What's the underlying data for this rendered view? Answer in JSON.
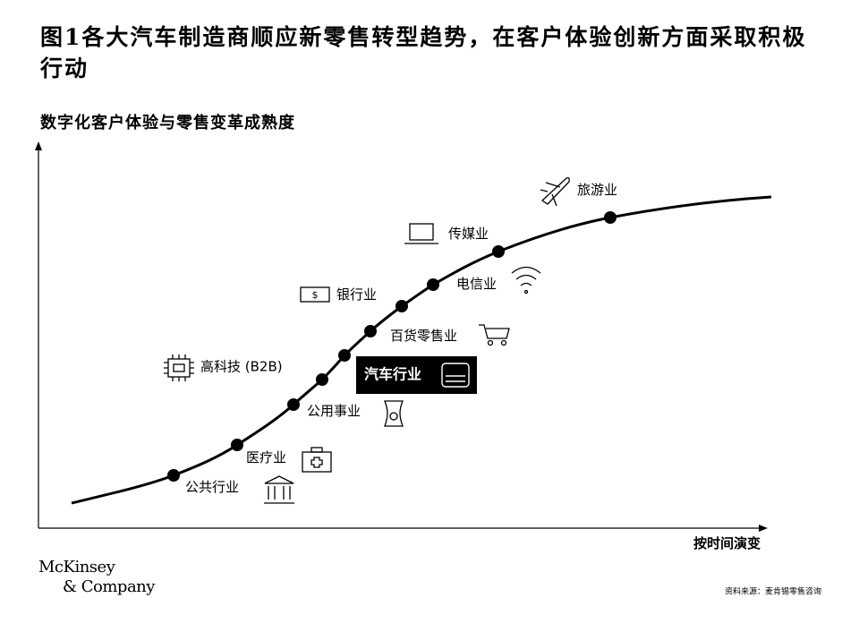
{
  "title": "图1各大汽车制造商顺应新零售转型趋势，在客户体验创新方面采取积极行动",
  "y_axis_label": "数字化客户体验与零售变革成熟度",
  "x_axis_label": "按时间演变",
  "nodes": [
    {
      "label": "公共行业"
    },
    {
      "label": "医疗业"
    },
    {
      "label": "公用事业"
    },
    {
      "label": "高科技 (B2B)"
    },
    {
      "label": "汽车行业"
    },
    {
      "label": "百货零售业"
    },
    {
      "label": "银行业"
    },
    {
      "label": "电信业"
    },
    {
      "label": "传媒业"
    },
    {
      "label": "旅游业"
    }
  ],
  "logo": {
    "line1": "McKinsey",
    "line2": "& Company"
  },
  "source": "资料来源：麦肯锡零售咨询"
}
